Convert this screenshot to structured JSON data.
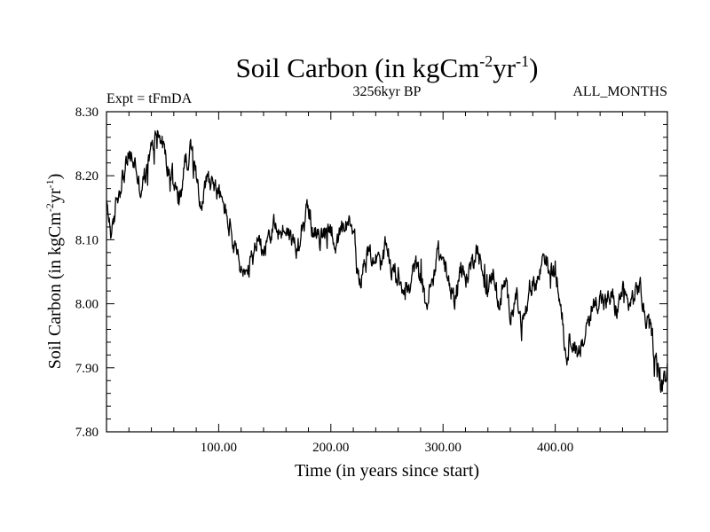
{
  "chart_data": {
    "type": "line",
    "title": "Soil Carbon (in kgCm",
    "title_sup1": "-2",
    "title_mid": "yr",
    "title_sup2": "-1",
    "title_end": ")",
    "left_label": "Expt = tFmDA",
    "center_label": "3256kyr BP",
    "right_label": "ALL_MONTHS",
    "xlabel": "Time (in years since start)",
    "ylabel": "Soil Carbon (in kgCm",
    "ylabel_sup1": "-2",
    "ylabel_mid": "yr",
    "ylabel_sup2": "-1",
    "ylabel_end": ")",
    "xlim": [
      0,
      500
    ],
    "ylim": [
      7.8,
      8.3
    ],
    "x_ticks": [
      100,
      200,
      300,
      400
    ],
    "x_tick_labels": [
      "100.00",
      "200.00",
      "300.00",
      "400.00"
    ],
    "y_ticks": [
      7.8,
      7.9,
      8.0,
      8.1,
      8.2,
      8.3
    ],
    "y_tick_labels": [
      "7.80",
      "7.90",
      "8.00",
      "8.10",
      "8.20",
      "8.30"
    ],
    "series": [
      {
        "name": "Soil Carbon",
        "color": "#000000",
        "anchors_x": [
          0,
          5,
          10,
          15,
          20,
          25,
          30,
          35,
          40,
          45,
          50,
          55,
          60,
          65,
          70,
          75,
          80,
          85,
          90,
          95,
          100,
          105,
          110,
          115,
          120,
          125,
          130,
          135,
          140,
          145,
          150,
          155,
          160,
          165,
          170,
          175,
          180,
          185,
          190,
          195,
          200,
          205,
          210,
          215,
          220,
          225,
          230,
          235,
          240,
          245,
          250,
          255,
          260,
          265,
          270,
          275,
          280,
          285,
          290,
          295,
          300,
          305,
          310,
          315,
          320,
          325,
          330,
          335,
          340,
          345,
          350,
          355,
          360,
          365,
          370,
          375,
          380,
          385,
          390,
          395,
          400,
          405,
          410,
          415,
          420,
          425,
          430,
          435,
          440,
          445,
          450,
          455,
          460,
          465,
          470,
          475,
          480,
          485,
          490,
          495,
          500
        ],
        "anchors_y": [
          8.15,
          8.11,
          8.17,
          8.2,
          8.23,
          8.22,
          8.18,
          8.2,
          8.24,
          8.27,
          8.25,
          8.21,
          8.19,
          8.16,
          8.22,
          8.24,
          8.2,
          8.16,
          8.2,
          8.19,
          8.17,
          8.15,
          8.12,
          8.08,
          8.05,
          8.04,
          8.07,
          8.1,
          8.09,
          8.11,
          8.12,
          8.11,
          8.12,
          8.1,
          8.09,
          8.13,
          8.15,
          8.11,
          8.1,
          8.11,
          8.12,
          8.09,
          8.11,
          8.12,
          8.12,
          8.04,
          8.06,
          8.08,
          8.07,
          8.06,
          8.09,
          8.05,
          8.04,
          8.03,
          8.02,
          8.06,
          8.04,
          8.0,
          8.03,
          8.08,
          8.07,
          8.03,
          8.01,
          8.05,
          8.04,
          8.06,
          8.09,
          8.05,
          8.02,
          8.05,
          8.0,
          8.03,
          7.99,
          8.01,
          7.97,
          7.99,
          8.03,
          8.04,
          8.08,
          8.05,
          8.05,
          8.0,
          7.92,
          7.95,
          7.91,
          7.94,
          7.98,
          8.0,
          8.01,
          8.0,
          8.01,
          7.99,
          8.02,
          8.0,
          8.01,
          8.03,
          7.98,
          7.96,
          7.91,
          7.87,
          7.9
        ],
        "noise_amplitude": 0.022
      }
    ]
  }
}
